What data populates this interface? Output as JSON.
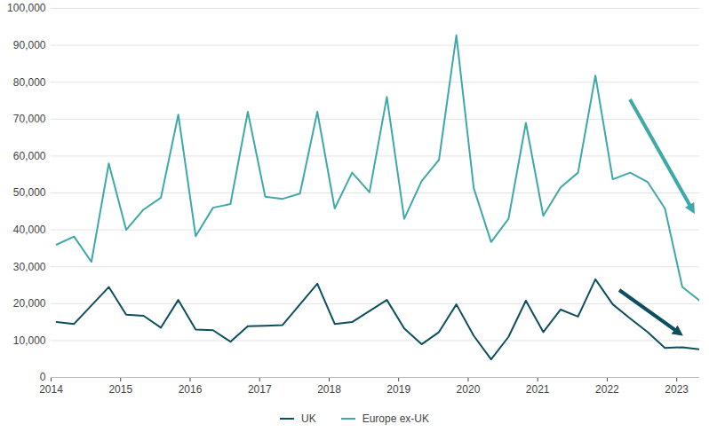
{
  "chart_data": {
    "type": "line",
    "x": [
      2014.08,
      2014.33,
      2014.58,
      2014.83,
      2015.08,
      2015.33,
      2015.58,
      2015.83,
      2016.08,
      2016.33,
      2016.58,
      2016.83,
      2017.08,
      2017.33,
      2017.58,
      2017.83,
      2018.08,
      2018.33,
      2018.58,
      2018.83,
      2019.08,
      2019.33,
      2019.58,
      2019.83,
      2020.08,
      2020.33,
      2020.58,
      2020.83,
      2021.08,
      2021.33,
      2021.58,
      2021.83,
      2022.08,
      2022.33,
      2022.58,
      2022.83,
      2023.08,
      2023.33
    ],
    "series": [
      {
        "name": "UK",
        "color": "#0d4f5e",
        "values": [
          15000,
          14500,
          19500,
          24500,
          17000,
          16700,
          13500,
          21000,
          13000,
          12800,
          9700,
          13900,
          14000,
          14200,
          19800,
          25400,
          14500,
          15000,
          18000,
          21000,
          13300,
          9000,
          12300,
          19800,
          11300,
          4900,
          11000,
          20800,
          12300,
          18400,
          16500,
          26600,
          19800,
          16000,
          12300,
          8000,
          8200,
          7600
        ]
      },
      {
        "name": "Europe ex-UK",
        "color": "#3fa8a8",
        "values": [
          36000,
          38200,
          31300,
          58000,
          40000,
          45500,
          48700,
          71200,
          38300,
          46000,
          47000,
          72000,
          49000,
          48400,
          49800,
          72000,
          45800,
          55500,
          50200,
          76000,
          43000,
          53200,
          59000,
          92700,
          51300,
          36700,
          43000,
          69000,
          43800,
          51500,
          55500,
          81800,
          53700,
          55500,
          53000,
          45800,
          24500,
          20800
        ]
      }
    ],
    "xlim": [
      2014,
      2023.33
    ],
    "xticks": [
      2014,
      2015,
      2016,
      2017,
      2018,
      2019,
      2020,
      2021,
      2022,
      2023
    ],
    "ylim": [
      0,
      100000
    ],
    "yticks": [
      0,
      {
        "value": 10000,
        "label": "10,000"
      },
      {
        "value": 20000,
        "label": "20,000"
      },
      {
        "value": 30000,
        "label": "30,000"
      },
      {
        "value": 40000,
        "label": "40,000"
      },
      {
        "value": 50000,
        "label": "50,000"
      },
      {
        "value": 60000,
        "label": "60,000"
      },
      {
        "value": 70000,
        "label": "70,000"
      },
      {
        "value": 80000,
        "label": "80,000"
      },
      {
        "value": 90000,
        "label": "90,000"
      },
      {
        "value": 100000,
        "label": "100,000"
      }
    ],
    "grid": true,
    "legend": "bottom"
  }
}
